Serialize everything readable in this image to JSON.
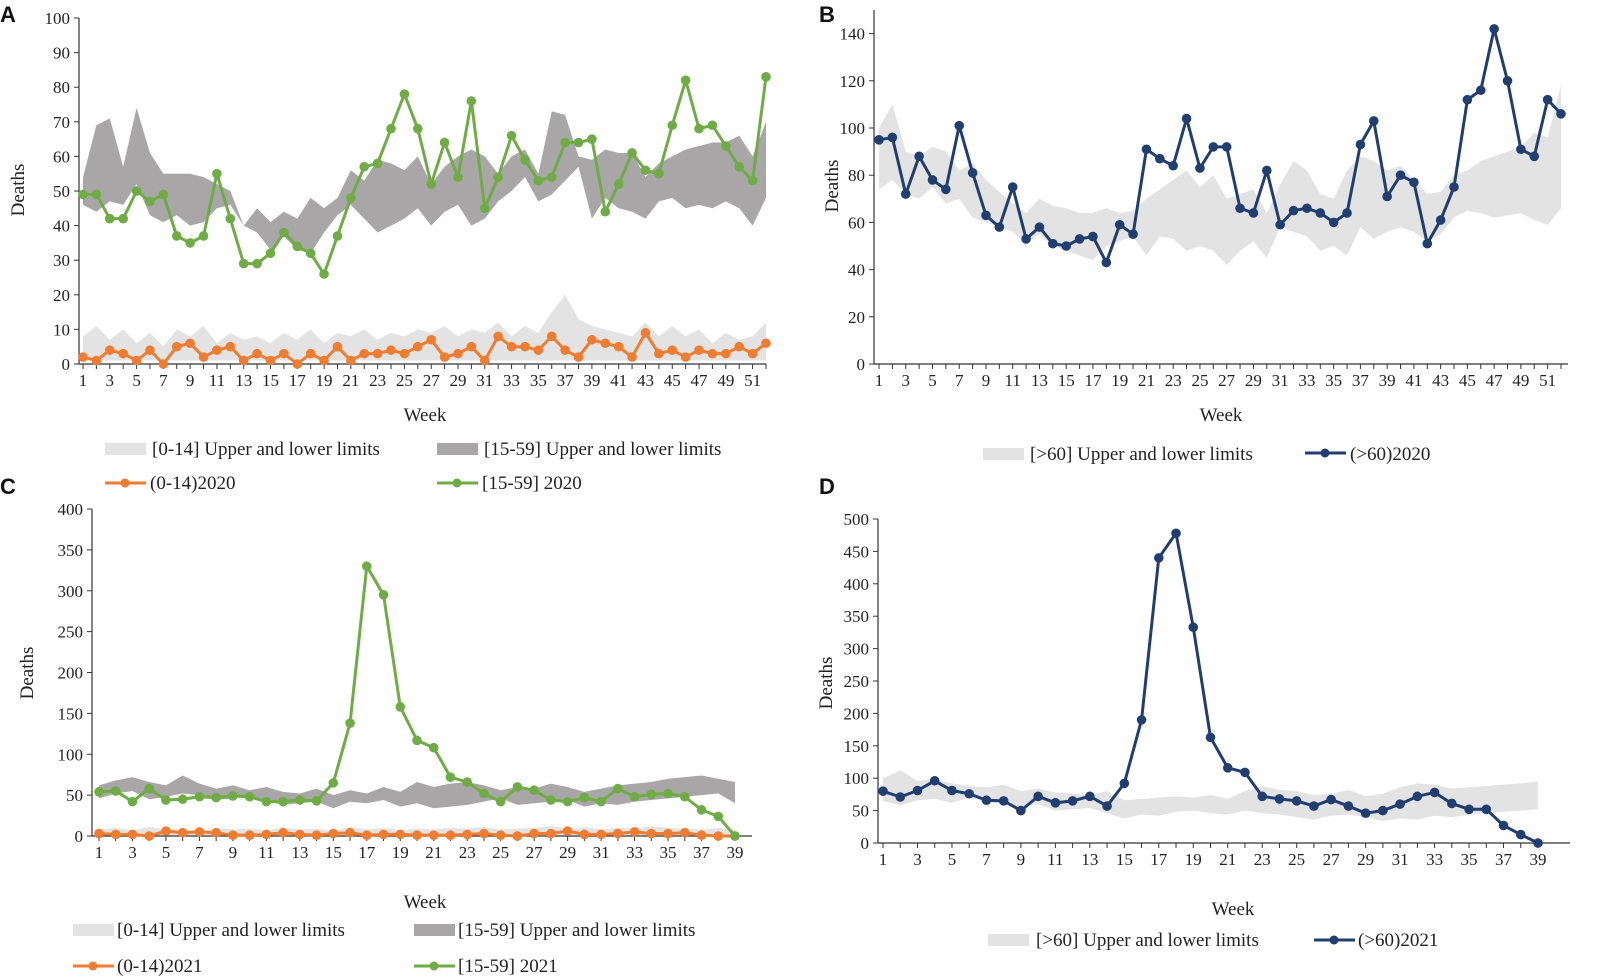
{
  "colors": {
    "band_light": "#e3e3e3",
    "band_dark": "#a8a6a6",
    "orange": "#ee7d31",
    "green": "#6fac46",
    "navy": "#203e70",
    "axis": "#333333"
  },
  "chart_data": [
    {
      "panel": "A",
      "type": "line",
      "xlabel": "Week",
      "ylabel": "Deaths",
      "ylim": [
        0,
        100
      ],
      "yticks": [
        0,
        10,
        20,
        30,
        40,
        50,
        60,
        70,
        80,
        90,
        100
      ],
      "xtick_labels": [
        "1",
        "3",
        "5",
        "7",
        "9",
        "11",
        "13",
        "15",
        "17",
        "19",
        "21",
        "23",
        "25",
        "27",
        "29",
        "31",
        "33",
        "35",
        "37",
        "39",
        "41",
        "43",
        "45",
        "47",
        "49",
        "51"
      ],
      "legend_position": "bottom",
      "bands": [
        {
          "name": "[0-14] Upper and lower limits",
          "color": "band_light",
          "lower": [
            1,
            1,
            1,
            1,
            1,
            1,
            1,
            1,
            1,
            1,
            1,
            1,
            1,
            1,
            1,
            1,
            1,
            1,
            1,
            1,
            1,
            1,
            1,
            1,
            1,
            1,
            1,
            1,
            1,
            1,
            1,
            1,
            1,
            1,
            1,
            1,
            1,
            1,
            1,
            1,
            1,
            1,
            1,
            1,
            1,
            1,
            1,
            1,
            1,
            1,
            1,
            1
          ],
          "upper": [
            8,
            11,
            7,
            10,
            6,
            9,
            5,
            10,
            8,
            11,
            6,
            9,
            7,
            8,
            6,
            9,
            7,
            10,
            6,
            9,
            8,
            10,
            7,
            9,
            8,
            10,
            9,
            11,
            8,
            10,
            9,
            12,
            8,
            11,
            9,
            15,
            20,
            13,
            11,
            10,
            9,
            8,
            12,
            8,
            11,
            8,
            10,
            6,
            9,
            7,
            8,
            12
          ]
        },
        {
          "name": "[15-59] Upper and lower limits",
          "color": "band_dark",
          "lower": [
            46,
            44,
            47,
            46,
            52,
            43,
            41,
            43,
            40,
            41,
            45,
            46,
            40,
            38,
            33,
            37,
            33,
            32,
            38,
            43,
            46,
            42,
            38,
            40,
            42,
            45,
            40,
            44,
            46,
            40,
            42,
            47,
            50,
            54,
            47,
            49,
            53,
            57,
            42,
            48,
            45,
            44,
            42,
            47,
            48,
            45,
            46,
            45,
            47,
            45,
            40,
            48
          ],
          "upper": [
            54,
            69,
            71,
            57,
            74,
            61,
            55,
            55,
            55,
            54,
            52,
            50,
            40,
            45,
            41,
            44,
            42,
            48,
            45,
            48,
            56,
            53,
            59,
            58,
            56,
            60,
            52,
            57,
            60,
            62,
            60,
            55,
            60,
            62,
            55,
            73,
            72,
            60,
            59,
            62,
            61,
            61,
            54,
            58,
            60,
            62,
            63,
            64,
            64,
            66,
            60,
            70
          ]
        }
      ],
      "series": [
        {
          "name": "(0-14)2020",
          "color": "orange",
          "values": [
            2,
            1,
            4,
            3,
            1,
            4,
            0,
            5,
            6,
            2,
            4,
            5,
            1,
            3,
            1,
            3,
            0,
            3,
            1,
            5,
            1,
            3,
            3,
            4,
            3,
            5,
            7,
            2,
            3,
            5,
            1,
            8,
            5,
            5,
            4,
            8,
            4,
            2,
            7,
            6,
            5,
            2,
            9,
            3,
            4,
            2,
            4,
            3,
            3,
            5,
            3,
            6
          ]
        },
        {
          "name": "[15-59] 2020",
          "color": "green",
          "values": [
            49,
            49,
            42,
            42,
            50,
            47,
            49,
            37,
            35,
            37,
            55,
            42,
            29,
            29,
            32,
            38,
            34,
            32,
            26,
            37,
            48,
            57,
            58,
            68,
            78,
            68,
            52,
            64,
            54,
            76,
            45,
            54,
            66,
            59,
            53,
            54,
            64,
            64,
            65,
            44,
            52,
            61,
            56,
            55,
            69,
            82,
            68,
            69,
            63,
            57,
            53,
            83
          ]
        }
      ]
    },
    {
      "panel": "B",
      "type": "line",
      "xlabel": "Week",
      "ylabel": "Deaths",
      "ylim": [
        0,
        150
      ],
      "yticks": [
        0,
        20,
        40,
        60,
        80,
        100,
        120,
        140
      ],
      "xtick_labels": [
        "1",
        "3",
        "5",
        "7",
        "9",
        "11",
        "13",
        "15",
        "17",
        "19",
        "21",
        "23",
        "25",
        "27",
        "29",
        "31",
        "33",
        "35",
        "37",
        "39",
        "41",
        "43",
        "45",
        "47",
        "49",
        "51"
      ],
      "legend_position": "bottom",
      "bands": [
        {
          "name": "[>60] Upper and lower limits",
          "color": "band_light",
          "lower": [
            74,
            78,
            72,
            70,
            75,
            68,
            70,
            62,
            60,
            58,
            56,
            51,
            55,
            50,
            48,
            46,
            44,
            50,
            52,
            54,
            46,
            54,
            53,
            48,
            50,
            48,
            42,
            48,
            52,
            45,
            58,
            56,
            54,
            48,
            50,
            46,
            58,
            53,
            56,
            58,
            56,
            52,
            55,
            62,
            65,
            64,
            62,
            63,
            64,
            61,
            59,
            66
          ],
          "upper": [
            100,
            110,
            90,
            88,
            92,
            90,
            82,
            85,
            78,
            73,
            68,
            64,
            70,
            67,
            66,
            64,
            64,
            66,
            64,
            65,
            70,
            74,
            78,
            82,
            75,
            80,
            70,
            72,
            74,
            64,
            76,
            86,
            82,
            72,
            70,
            82,
            88,
            86,
            82,
            84,
            78,
            72,
            73,
            80,
            82,
            86,
            88,
            90,
            92,
            98,
            96,
            118
          ]
        }
      ],
      "series": [
        {
          "name": "(>60)2020",
          "color": "navy",
          "values": [
            95,
            96,
            72,
            88,
            78,
            74,
            101,
            81,
            63,
            58,
            75,
            53,
            58,
            51,
            50,
            53,
            54,
            43,
            59,
            55,
            91,
            87,
            84,
            104,
            83,
            92,
            92,
            66,
            64,
            82,
            59,
            65,
            66,
            64,
            60,
            64,
            93,
            103,
            71,
            80,
            77,
            51,
            61,
            75,
            112,
            116,
            142,
            120,
            91,
            88,
            112,
            106
          ]
        }
      ]
    },
    {
      "panel": "C",
      "type": "line",
      "xlabel": "Week",
      "ylabel": "Deaths",
      "ylim": [
        0,
        400
      ],
      "yticks": [
        0,
        50,
        100,
        150,
        200,
        250,
        300,
        350,
        400
      ],
      "xtick_labels": [
        "1",
        "3",
        "5",
        "7",
        "9",
        "11",
        "13",
        "15",
        "17",
        "19",
        "21",
        "23",
        "25",
        "27",
        "29",
        "31",
        "33",
        "35",
        "37",
        "39"
      ],
      "legend_position": "bottom",
      "bands": [
        {
          "name": "[0-14] Upper and lower limits",
          "color": "band_light",
          "lower": [
            1,
            1,
            1,
            1,
            1,
            1,
            1,
            1,
            1,
            1,
            1,
            1,
            1,
            1,
            1,
            1,
            1,
            1,
            1,
            1,
            1,
            1,
            1,
            1,
            1,
            1,
            1,
            1,
            1,
            1,
            1,
            1,
            1,
            1,
            1,
            1,
            1,
            1,
            1
          ],
          "upper": [
            8,
            10,
            7,
            11,
            8,
            9,
            6,
            10,
            8,
            9,
            7,
            10,
            8,
            9,
            6,
            11,
            8,
            10,
            7,
            9,
            8,
            10,
            9,
            11,
            8,
            9,
            10,
            12,
            9,
            11,
            8,
            10,
            9,
            12,
            10,
            9,
            8,
            10,
            8
          ]
        },
        {
          "name": "[15-59] Upper and lower limits",
          "color": "band_dark",
          "lower": [
            46,
            52,
            55,
            45,
            48,
            52,
            50,
            44,
            46,
            50,
            43,
            38,
            40,
            42,
            34,
            42,
            40,
            44,
            36,
            40,
            34,
            36,
            38,
            42,
            46,
            38,
            40,
            42,
            44,
            36,
            40,
            38,
            42,
            44,
            46,
            48,
            50,
            52,
            40
          ],
          "upper": [
            62,
            68,
            72,
            66,
            62,
            74,
            64,
            58,
            62,
            56,
            60,
            54,
            52,
            58,
            50,
            56,
            52,
            60,
            54,
            66,
            60,
            64,
            66,
            62,
            56,
            60,
            58,
            64,
            60,
            54,
            58,
            62,
            64,
            66,
            70,
            72,
            74,
            70,
            66
          ]
        }
      ],
      "series": [
        {
          "name": "(0-14)2021",
          "color": "orange",
          "values": [
            3,
            2,
            2,
            0,
            6,
            4,
            5,
            4,
            1,
            1,
            2,
            4,
            2,
            1,
            3,
            4,
            1,
            2,
            2,
            1,
            1,
            1,
            2,
            3,
            1,
            0,
            3,
            3,
            6,
            2,
            2,
            3,
            5,
            3,
            3,
            4,
            1,
            0,
            0
          ]
        },
        {
          "name": "[15-59] 2021",
          "color": "green",
          "values": [
            54,
            55,
            42,
            58,
            44,
            45,
            48,
            47,
            49,
            48,
            42,
            42,
            44,
            43,
            65,
            138,
            330,
            295,
            158,
            117,
            108,
            72,
            66,
            52,
            42,
            60,
            56,
            44,
            42,
            47,
            42,
            58,
            48,
            51,
            52,
            48,
            32,
            24,
            0
          ]
        }
      ]
    },
    {
      "panel": "D",
      "type": "line",
      "xlabel": "Week",
      "ylabel": "Deaths",
      "ylim": [
        0,
        500
      ],
      "yticks": [
        0,
        50,
        100,
        150,
        200,
        250,
        300,
        350,
        400,
        450,
        500
      ],
      "xtick_labels": [
        "1",
        "3",
        "5",
        "7",
        "9",
        "11",
        "13",
        "15",
        "17",
        "19",
        "21",
        "23",
        "25",
        "27",
        "29",
        "31",
        "33",
        "35",
        "37",
        "39"
      ],
      "legend_position": "bottom",
      "bands": [
        {
          "name": "[>60] Upper and lower limits",
          "color": "band_light",
          "lower": [
            65,
            58,
            66,
            68,
            62,
            70,
            64,
            60,
            56,
            60,
            50,
            52,
            54,
            46,
            38,
            44,
            42,
            48,
            50,
            46,
            44,
            50,
            46,
            44,
            40,
            36,
            42,
            44,
            40,
            34,
            38,
            36,
            42,
            40,
            44,
            46,
            48,
            50,
            52
          ],
          "upper": [
            100,
            112,
            96,
            98,
            92,
            88,
            86,
            90,
            80,
            84,
            78,
            76,
            74,
            80,
            66,
            68,
            70,
            72,
            70,
            74,
            68,
            80,
            88,
            82,
            80,
            74,
            76,
            82,
            72,
            76,
            86,
            92,
            90,
            84,
            86,
            88,
            90,
            92,
            95
          ]
        }
      ],
      "series": [
        {
          "name": "(>60)2021",
          "color": "navy",
          "values": [
            80,
            71,
            81,
            96,
            81,
            76,
            66,
            65,
            50,
            72,
            62,
            65,
            72,
            57,
            92,
            190,
            440,
            478,
            333,
            163,
            116,
            109,
            72,
            68,
            65,
            57,
            67,
            57,
            46,
            50,
            60,
            72,
            78,
            61,
            52,
            52,
            27,
            13,
            0
          ]
        }
      ]
    }
  ]
}
